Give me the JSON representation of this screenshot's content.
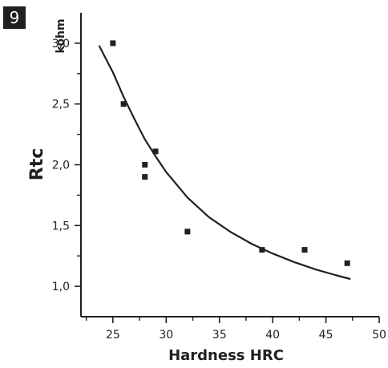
{
  "figure": {
    "number": "9"
  },
  "chart_data": {
    "type": "scatter",
    "xlabel": "Hardness HRC",
    "ylabel": "Rtc",
    "yunit": "kohm",
    "xlim": [
      22,
      50
    ],
    "ylim": [
      0.75,
      3.25
    ],
    "x_ticks": [
      "25",
      "30",
      "35",
      "40",
      "45",
      "50"
    ],
    "y_ticks": [
      "1,0",
      "1,5",
      "2,0",
      "2,5",
      "3,0"
    ],
    "grid": false,
    "series": [
      {
        "type": "scatter",
        "marker": "square",
        "color": "#231f20",
        "points": [
          {
            "x": 25,
            "y": 3.0
          },
          {
            "x": 26,
            "y": 2.5
          },
          {
            "x": 28,
            "y": 2.0
          },
          {
            "x": 28,
            "y": 1.9
          },
          {
            "x": 29,
            "y": 2.11
          },
          {
            "x": 32,
            "y": 1.45
          },
          {
            "x": 39,
            "y": 1.3
          },
          {
            "x": 43,
            "y": 1.3
          },
          {
            "x": 47,
            "y": 1.19
          }
        ]
      },
      {
        "type": "line",
        "color": "#231f20",
        "points": [
          {
            "x": 23.7,
            "y": 2.98
          },
          {
            "x": 25,
            "y": 2.76
          },
          {
            "x": 26,
            "y": 2.56
          },
          {
            "x": 27,
            "y": 2.38
          },
          {
            "x": 28,
            "y": 2.21
          },
          {
            "x": 29,
            "y": 2.07
          },
          {
            "x": 30,
            "y": 1.94
          },
          {
            "x": 32,
            "y": 1.73
          },
          {
            "x": 34,
            "y": 1.57
          },
          {
            "x": 36,
            "y": 1.45
          },
          {
            "x": 38,
            "y": 1.35
          },
          {
            "x": 40,
            "y": 1.27
          },
          {
            "x": 42,
            "y": 1.2
          },
          {
            "x": 44,
            "y": 1.14
          },
          {
            "x": 46,
            "y": 1.09
          },
          {
            "x": 47.3,
            "y": 1.06
          }
        ]
      }
    ]
  }
}
